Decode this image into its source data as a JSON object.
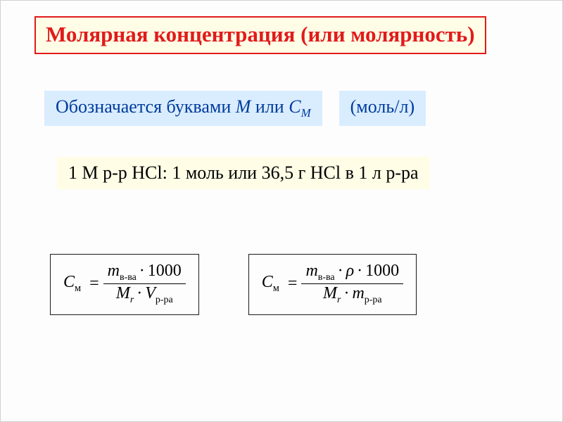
{
  "colors": {
    "title_text": "#e11b1b",
    "title_border": "#e11b1b",
    "yellow_bg": "#fffde6",
    "blue_bg": "#d9edff",
    "notation_text": "#003a9e",
    "body_text": "#1a1a1a",
    "formula_border": "#1a1a1a"
  },
  "title": "Молярная концентрация (или молярность)",
  "notation": {
    "prefix": "Обозначается буквами ",
    "sym1": "М",
    "mid": " или ",
    "sym2": "С",
    "sym2_sub": "М"
  },
  "unit": "(моль/л)",
  "example": "1 М р-р HCl:  1 моль или 36,5 г HCl в 1 л р-ра",
  "formula1": {
    "lhs_sym": "С",
    "lhs_sub": "м",
    "num_m": "m",
    "num_m_sub": "в-ва",
    "num_const": "1000",
    "den_M": "M",
    "den_M_sub": "r",
    "den_V": "V",
    "den_V_sub": "р-ра"
  },
  "formula2": {
    "lhs_sym": "С",
    "lhs_sub": "м",
    "num_m": "m",
    "num_m_sub": "в-ва",
    "num_rho": "ρ",
    "num_const": "1000",
    "den_M": "M",
    "den_M_sub": "r",
    "den_m2": "m",
    "den_m2_sub": "р-ра"
  },
  "style": {
    "title_fontsize": 31,
    "body_fontsize": 26,
    "formula_fontsize": 24
  }
}
